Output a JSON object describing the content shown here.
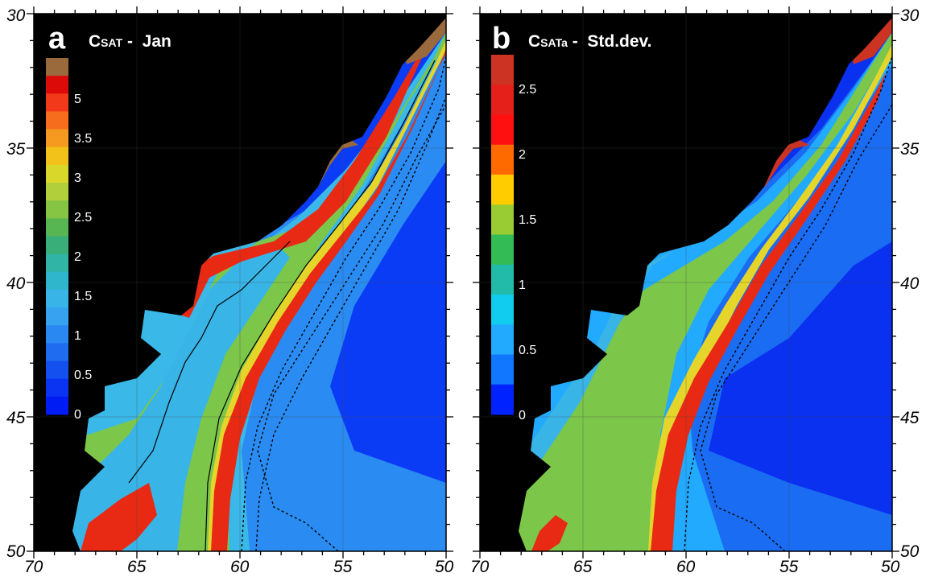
{
  "panels": [
    {
      "letter": "a",
      "title_main": "C",
      "title_sub": "SAT",
      "title_rest": " -  Jan",
      "colorbar": {
        "labels": [
          "5",
          "3.5",
          "3",
          "2.5",
          "2",
          "1.5",
          "1",
          "0.5",
          "0"
        ],
        "colors": [
          "#9a6a3c",
          "#dd0a0a",
          "#f23a1a",
          "#f56d1d",
          "#f59a1f",
          "#f2c21a",
          "#d9d82a",
          "#b0cf3a",
          "#86c444",
          "#58b652",
          "#3aae78",
          "#2fb4a6",
          "#2fb6cc",
          "#39b4e6",
          "#36a2f0",
          "#2a88f2",
          "#1f6cf0",
          "#1450f0",
          "#0a34f2",
          "#001cf5"
        ]
      }
    },
    {
      "letter": "b",
      "title_main": "C",
      "title_sub": "SATa",
      "title_rest": " -  Std.dev.",
      "colorbar": {
        "labels": [
          "2.5",
          "2",
          "1.5",
          "1",
          "0.5",
          "0"
        ],
        "colors": [
          "#cc3322",
          "#e5201a",
          "#ff1010",
          "#ff6a00",
          "#ffcc00",
          "#99cc33",
          "#33bb55",
          "#22bbaa",
          "#11ccee",
          "#22aaff",
          "#1177ff",
          "#0022ff"
        ]
      }
    }
  ],
  "axes": {
    "longitude_ticks": [
      "70",
      "65",
      "60",
      "55",
      "50"
    ],
    "latitude_ticks_left": [
      "30",
      "35",
      "40",
      "45",
      "50"
    ],
    "latitude_ticks_right": [
      "30",
      "35",
      "40",
      "45",
      "50"
    ]
  },
  "colors": {
    "land": "#000000",
    "deep_ocean": "#0b3cf5",
    "mid_ocean": "#2a8cf2",
    "shelf_ocean": "#3ab8e8",
    "shelf_green": "#7cc64a",
    "front_yellow": "#e5d52a",
    "front_red": "#e82a14",
    "estuary_brown": "#9a6a3c",
    "estuary_red_b": "#cc3322"
  }
}
